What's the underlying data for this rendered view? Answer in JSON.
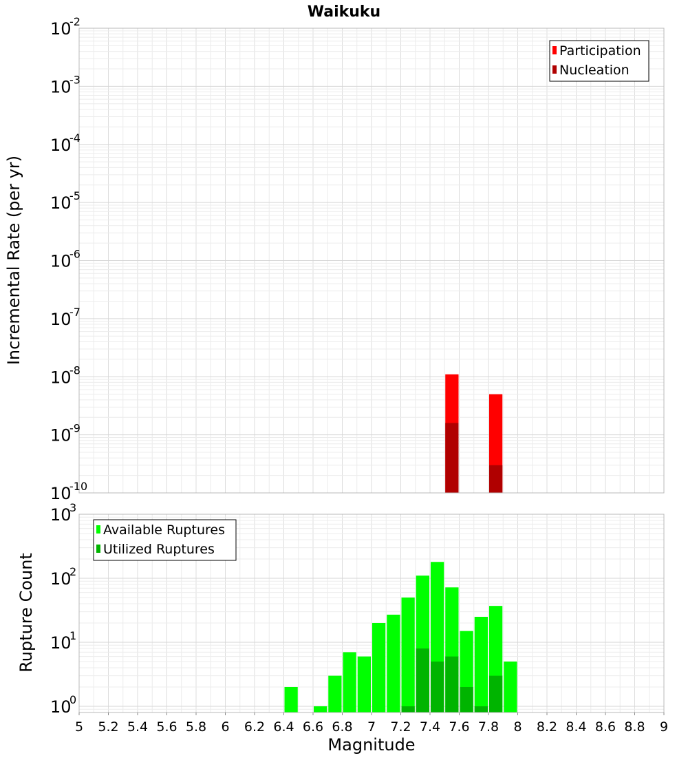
{
  "chart_data": [
    {
      "type": "bar",
      "title": "Waikuku",
      "ylabel": "Incremental Rate (per yr)",
      "xlabel": "",
      "yscale": "log",
      "ylim": [
        1e-10,
        0.01
      ],
      "xlim": [
        5,
        9
      ],
      "ytick_exponents": [
        "-10",
        "-9",
        "-8",
        "-7",
        "-6",
        "-5",
        "-4",
        "-3",
        "-2"
      ],
      "legend_position": "top-right",
      "grid": true,
      "bar_width": 0.1,
      "series": [
        {
          "name": "Participation",
          "color": "#ff0000",
          "points": [
            [
              7.55,
              1.1e-08
            ],
            [
              7.85,
              5e-09
            ]
          ]
        },
        {
          "name": "Nucleation",
          "color": "#b00000",
          "points": [
            [
              7.55,
              1.6e-09
            ],
            [
              7.85,
              3e-10
            ]
          ]
        }
      ]
    },
    {
      "type": "bar",
      "title": "",
      "ylabel": "Rupture Count",
      "xlabel": "Magnitude",
      "yscale": "log",
      "ylim": [
        0.8,
        1000
      ],
      "xlim": [
        5,
        9
      ],
      "ytick_exponents": [
        "0",
        "1",
        "2",
        "3"
      ],
      "xtick_labels": [
        "5",
        "5.2",
        "5.4",
        "5.6",
        "5.8",
        "6",
        "6.2",
        "6.4",
        "6.6",
        "6.8",
        "7",
        "7.2",
        "7.4",
        "7.6",
        "7.8",
        "8",
        "8.2",
        "8.4",
        "8.6",
        "8.8",
        "9"
      ],
      "legend_position": "top-left",
      "grid": true,
      "bar_width": 0.1,
      "series": [
        {
          "name": "Available Ruptures",
          "color": "#00ff00",
          "points": [
            [
              6.45,
              2
            ],
            [
              6.65,
              1
            ],
            [
              6.75,
              3
            ],
            [
              6.85,
              7
            ],
            [
              6.95,
              6
            ],
            [
              7.05,
              20
            ],
            [
              7.15,
              27
            ],
            [
              7.25,
              50
            ],
            [
              7.35,
              110
            ],
            [
              7.45,
              180
            ],
            [
              7.55,
              72
            ],
            [
              7.65,
              15
            ],
            [
              7.75,
              25
            ],
            [
              7.85,
              37
            ],
            [
              7.95,
              5
            ]
          ]
        },
        {
          "name": "Utilized Ruptures",
          "color": "#00b400",
          "points": [
            [
              7.25,
              1
            ],
            [
              7.35,
              8
            ],
            [
              7.45,
              5
            ],
            [
              7.55,
              6
            ],
            [
              7.65,
              2
            ],
            [
              7.75,
              1
            ],
            [
              7.85,
              3
            ]
          ]
        }
      ]
    }
  ]
}
